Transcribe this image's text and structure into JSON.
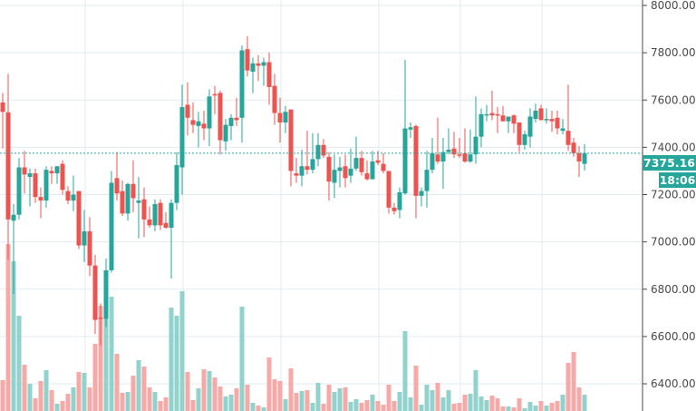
{
  "chart_data": {
    "type": "candlestick",
    "title": "",
    "colors": {
      "up": "#26a69a",
      "down": "#ef5350",
      "up_volume": "#92d2cc",
      "down_volume": "#f7a9a7",
      "grid": "#e1ecf2",
      "axis": "#4a4a4a",
      "last_price_line": "#26a69a"
    },
    "ylim": [
      6300,
      8015
    ],
    "y_ticks": [
      8000,
      7800,
      7600,
      7400,
      7200,
      7000,
      6800,
      6600,
      6400
    ],
    "y_tick_labels": [
      "8000.00",
      "7800.00",
      "7600.00",
      "7400.00",
      "7200.00",
      "7000.00",
      "6800.00",
      "6600.00",
      "6400.00"
    ],
    "last_price": 7375.16,
    "last_price_label": "7375.16",
    "countdown_label": "18:06",
    "grid": true,
    "volume_unit": "relative",
    "candles": [
      [
        7590,
        7630,
        7395,
        7550,
        34
      ],
      [
        7548,
        7710,
        6925,
        7095,
        184
      ],
      [
        7090,
        7160,
        6780,
        7115,
        165
      ],
      [
        7115,
        7355,
        7095,
        7315,
        105
      ],
      [
        7315,
        7385,
        7205,
        7285,
        51
      ],
      [
        7275,
        7310,
        7150,
        7290,
        30
      ],
      [
        7290,
        7310,
        7165,
        7190,
        14
      ],
      [
        7190,
        7230,
        7100,
        7175,
        33
      ],
      [
        7175,
        7320,
        7145,
        7305,
        45
      ],
      [
        7300,
        7320,
        7245,
        7290,
        23
      ],
      [
        7290,
        7320,
        7245,
        7320,
        8
      ],
      [
        7330,
        7345,
        7200,
        7220,
        11
      ],
      [
        7215,
        7235,
        7160,
        7175,
        19
      ],
      [
        7175,
        7280,
        7130,
        7200,
        26
      ],
      [
        7215,
        7215,
        6970,
        6985,
        43
      ],
      [
        6985,
        7135,
        6915,
        7045,
        42
      ],
      [
        7045,
        7105,
        6855,
        6900,
        26
      ],
      [
        6900,
        6945,
        6610,
        6670,
        74
      ],
      [
        6680,
        6740,
        6560,
        6675,
        116
      ],
      [
        6675,
        6930,
        6640,
        6880,
        110
      ],
      [
        6880,
        7300,
        6870,
        7250,
        126
      ],
      [
        7270,
        7380,
        7175,
        7205,
        63
      ],
      [
        7215,
        7260,
        7110,
        7120,
        20
      ],
      [
        7120,
        7250,
        7090,
        7245,
        21
      ],
      [
        7245,
        7345,
        7125,
        7185,
        39
      ],
      [
        7165,
        7275,
        7015,
        7175,
        56
      ],
      [
        7180,
        7230,
        7020,
        7095,
        49
      ],
      [
        7095,
        7150,
        7060,
        7070,
        26
      ],
      [
        7070,
        7180,
        7045,
        7160,
        21
      ],
      [
        7165,
        7180,
        7050,
        7070,
        11
      ],
      [
        7080,
        7125,
        7055,
        7060,
        15
      ],
      [
        7060,
        7180,
        6845,
        7165,
        114
      ],
      [
        7165,
        7380,
        7135,
        7325,
        105
      ],
      [
        7315,
        7665,
        7200,
        7570,
        132
      ],
      [
        7580,
        7675,
        7450,
        7525,
        43
      ],
      [
        7515,
        7590,
        7460,
        7495,
        12
      ],
      [
        7490,
        7550,
        7400,
        7510,
        25
      ],
      [
        7500,
        7555,
        7430,
        7480,
        46
      ],
      [
        7480,
        7645,
        7405,
        7615,
        44
      ],
      [
        7625,
        7660,
        7540,
        7620,
        37
      ],
      [
        7630,
        7640,
        7370,
        7430,
        27
      ],
      [
        7425,
        7520,
        7385,
        7495,
        16
      ],
      [
        7490,
        7540,
        7430,
        7525,
        18
      ],
      [
        7525,
        7610,
        7490,
        7515,
        25
      ],
      [
        7525,
        7830,
        7420,
        7810,
        115
      ],
      [
        7815,
        7870,
        7700,
        7725,
        29
      ],
      [
        7720,
        7780,
        7630,
        7755,
        9
      ],
      [
        7755,
        7790,
        7680,
        7745,
        6
      ],
      [
        7745,
        7780,
        7660,
        7760,
        4
      ],
      [
        7760,
        7800,
        7580,
        7655,
        59
      ],
      [
        7660,
        7710,
        7495,
        7545,
        35
      ],
      [
        7545,
        7610,
        7420,
        7505,
        33
      ],
      [
        7505,
        7575,
        7460,
        7550,
        13
      ],
      [
        7560,
        7560,
        7235,
        7300,
        47
      ],
      [
        7290,
        7355,
        7250,
        7280,
        20
      ],
      [
        7280,
        7390,
        7235,
        7320,
        22
      ],
      [
        7320,
        7470,
        7285,
        7305,
        23
      ],
      [
        7305,
        7460,
        7290,
        7350,
        9
      ],
      [
        7350,
        7460,
        7320,
        7410,
        31
      ],
      [
        7410,
        7435,
        7355,
        7365,
        8
      ],
      [
        7360,
        7380,
        7175,
        7255,
        29
      ],
      [
        7250,
        7370,
        7185,
        7305,
        21
      ],
      [
        7300,
        7360,
        7230,
        7315,
        25
      ],
      [
        7320,
        7370,
        7230,
        7270,
        26
      ],
      [
        7280,
        7395,
        7250,
        7310,
        10
      ],
      [
        7310,
        7445,
        7300,
        7355,
        13
      ],
      [
        7355,
        7385,
        7280,
        7295,
        9
      ],
      [
        7290,
        7345,
        7260,
        7265,
        12
      ],
      [
        7265,
        7385,
        7275,
        7340,
        18
      ],
      [
        7345,
        7385,
        7325,
        7335,
        11
      ],
      [
        7330,
        7375,
        7290,
        7300,
        7
      ],
      [
        7300,
        7300,
        7120,
        7145,
        29
      ],
      [
        7145,
        7165,
        7115,
        7130,
        11
      ],
      [
        7135,
        7230,
        7100,
        7210,
        21
      ],
      [
        7205,
        7770,
        7200,
        7480,
        88
      ],
      [
        7475,
        7505,
        7440,
        7485,
        15
      ],
      [
        7490,
        7495,
        7100,
        7195,
        50
      ],
      [
        7195,
        7230,
        7150,
        7215,
        7
      ],
      [
        7215,
        7385,
        7145,
        7305,
        29
      ],
      [
        7305,
        7440,
        7290,
        7375,
        23
      ],
      [
        7370,
        7525,
        7330,
        7340,
        31
      ],
      [
        7340,
        7440,
        7225,
        7380,
        15
      ],
      [
        7380,
        7480,
        7370,
        7390,
        23
      ],
      [
        7395,
        7465,
        7355,
        7370,
        8
      ],
      [
        7370,
        7440,
        7355,
        7365,
        9
      ],
      [
        7375,
        7480,
        7335,
        7340,
        18
      ],
      [
        7340,
        7475,
        7335,
        7370,
        19
      ],
      [
        7370,
        7615,
        7330,
        7445,
        45
      ],
      [
        7445,
        7565,
        7400,
        7540,
        16
      ],
      [
        7535,
        7580,
        7510,
        7540,
        12
      ],
      [
        7545,
        7640,
        7515,
        7535,
        17
      ],
      [
        7540,
        7570,
        7460,
        7535,
        14
      ],
      [
        7535,
        7575,
        7510,
        7510,
        5
      ],
      [
        7510,
        7520,
        7460,
        7530,
        5
      ],
      [
        7535,
        7540,
        7460,
        7500,
        4
      ],
      [
        7505,
        7505,
        7380,
        7410,
        14
      ],
      [
        7410,
        7470,
        7390,
        7455,
        3
      ],
      [
        7445,
        7565,
        7400,
        7530,
        10
      ],
      [
        7520,
        7585,
        7505,
        7555,
        6
      ],
      [
        7565,
        7580,
        7515,
        7515,
        11
      ],
      [
        7515,
        7565,
        7500,
        7520,
        6
      ],
      [
        7520,
        7555,
        7465,
        7510,
        9
      ],
      [
        7525,
        7555,
        7455,
        7480,
        11
      ],
      [
        7470,
        7520,
        7455,
        7480,
        18
      ],
      [
        7470,
        7665,
        7385,
        7410,
        53
      ],
      [
        7420,
        7440,
        7360,
        7375,
        65
      ],
      [
        7375,
        7405,
        7275,
        7340,
        26
      ],
      [
        7330,
        7413,
        7302,
        7375.16,
        18
      ]
    ],
    "candle_fields": [
      "open",
      "high",
      "low",
      "close",
      "volume"
    ]
  }
}
